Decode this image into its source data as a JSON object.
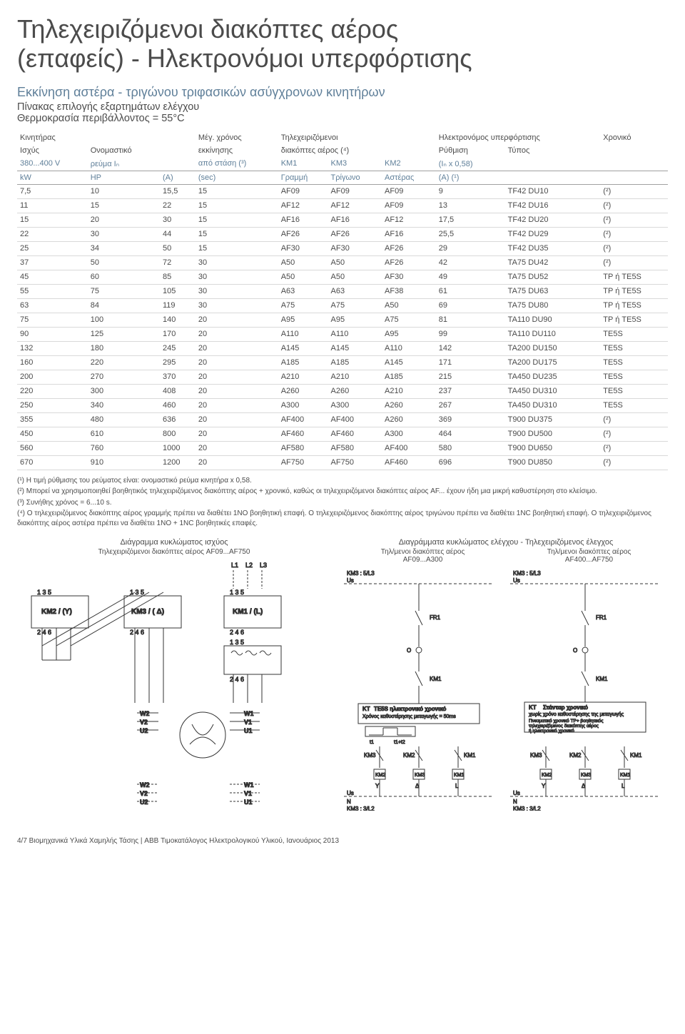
{
  "title_line1": "Τηλεχειριζόμενοι διακόπτες αέρος",
  "title_line2": "(επαφείς) - Ηλεκτρονόμοι υπερφόρτισης",
  "sub1": "Εκκίνηση αστέρα - τριγώνου τριφασικών ασύγχρονων κινητήρων",
  "sub2": "Πίνακας επιλογής εξαρτημάτων ελέγχου",
  "sub3": "Θερμοκρασία περιβάλλοντος = 55°C",
  "headers": {
    "r1": [
      "Κινητήρας",
      "",
      "Μέγ. χρόνος",
      "Τηλεχειριζόμενοι",
      "",
      "",
      "Ηλεκτρονόμος υπερφόρτισης",
      "",
      "Χρονικό"
    ],
    "r2": [
      "Ισχύς",
      "Ονομαστικό",
      "εκκίνησης",
      "διακόπτες αέρος (⁴)",
      "",
      "",
      "Ρύθμιση",
      "Τύπος",
      ""
    ],
    "r3": [
      "380...400 V",
      "ρεύμα Iₙ",
      "από στάση (³)",
      "KM1",
      "KM3",
      "KM2",
      "(Iₙ x 0,58)",
      "",
      ""
    ],
    "r4": [
      "kW",
      "HP",
      "(A)",
      "(sec)",
      "Γραμμή",
      "Τρίγωνο",
      "Αστέρας",
      "(A) (¹)",
      "",
      ""
    ]
  },
  "rows": [
    [
      "7,5",
      "10",
      "15,5",
      "15",
      "AF09",
      "AF09",
      "AF09",
      "9",
      "TF42 DU10",
      "(²)"
    ],
    [
      "11",
      "15",
      "22",
      "15",
      "AF12",
      "AF12",
      "AF09",
      "13",
      "TF42 DU16",
      "(²)"
    ],
    [
      "15",
      "20",
      "30",
      "15",
      "AF16",
      "AF16",
      "AF12",
      "17,5",
      "TF42 DU20",
      "(²)"
    ],
    [
      "22",
      "30",
      "44",
      "15",
      "AF26",
      "AF26",
      "AF16",
      "25,5",
      "TF42 DU29",
      "(²)"
    ],
    [
      "25",
      "34",
      "50",
      "15",
      "AF30",
      "AF30",
      "AF26",
      "29",
      "TF42 DU35",
      "(²)"
    ],
    [
      "37",
      "50",
      "72",
      "30",
      "A50",
      "A50",
      "AF26",
      "42",
      "TA75 DU42",
      "(²)"
    ],
    [
      "45",
      "60",
      "85",
      "30",
      "A50",
      "A50",
      "AF30",
      "49",
      "TA75 DU52",
      "TP ή TE5S"
    ],
    [
      "55",
      "75",
      "105",
      "30",
      "A63",
      "A63",
      "AF38",
      "61",
      "TA75 DU63",
      "TP ή TE5S"
    ],
    [
      "63",
      "84",
      "119",
      "30",
      "A75",
      "A75",
      "A50",
      "69",
      "TA75 DU80",
      "TP ή TE5S"
    ],
    [
      "75",
      "100",
      "140",
      "20",
      "A95",
      "A95",
      "A75",
      "81",
      "TA110 DU90",
      "TP ή TE5S"
    ],
    [
      "90",
      "125",
      "170",
      "20",
      "A110",
      "A110",
      "A95",
      "99",
      "TA110 DU110",
      "TE5S"
    ],
    [
      "132",
      "180",
      "245",
      "20",
      "A145",
      "A145",
      "A110",
      "142",
      "TA200 DU150",
      "TE5S"
    ],
    [
      "160",
      "220",
      "295",
      "20",
      "A185",
      "A185",
      "A145",
      "171",
      "TA200 DU175",
      "TE5S"
    ],
    [
      "200",
      "270",
      "370",
      "20",
      "A210",
      "A210",
      "A185",
      "215",
      "TA450 DU235",
      "TE5S"
    ],
    [
      "220",
      "300",
      "408",
      "20",
      "A260",
      "A260",
      "A210",
      "237",
      "TA450 DU310",
      "TE5S"
    ],
    [
      "250",
      "340",
      "460",
      "20",
      "A300",
      "A300",
      "A260",
      "267",
      "TA450 DU310",
      "TE5S"
    ],
    [
      "355",
      "480",
      "636",
      "20",
      "AF400",
      "AF400",
      "A260",
      "369",
      "T900 DU375",
      "(²)"
    ],
    [
      "450",
      "610",
      "800",
      "20",
      "AF460",
      "AF460",
      "A300",
      "464",
      "T900 DU500",
      "(²)"
    ],
    [
      "560",
      "760",
      "1000",
      "20",
      "AF580",
      "AF580",
      "AF400",
      "580",
      "T900 DU650",
      "(²)"
    ],
    [
      "670",
      "910",
      "1200",
      "20",
      "AF750",
      "AF750",
      "AF460",
      "696",
      "T900 DU850",
      "(²)"
    ]
  ],
  "notes": [
    "(¹) Η τιμή ρύθμισης του ρεύματος είναι: ονομαστικό ρεύμα κινητήρα x 0,58.",
    "(²) Μπορεί να χρησιμοποιηθεί βοηθητικός τηλεχειριζόμενος διακόπτης αέρος + χρονικό, καθώς οι τηλεχειριζόμενοι διακόπτες αέρος AF... έχουν ήδη μια μικρή καθυστέρηση στο κλείσιμο.",
    "(³) Συνήθης χρόνος = 6...10 s.",
    "(⁴) Ο τηλεχειριζόμενος διακόπτης αέρος γραμμής πρέπει να διαθέτει 1NO βοηθητική επαφή. Ο τηλεχειριζόμενος διακόπτης αέρος τριγώνου πρέπει να διαθέτει 1NC βοηθητική επαφή. Ο τηλεχειριζόμενος διακόπτης αέρος αστέρα πρέπει να διαθέτει 1NO + 1NC βοηθητικές επαφές."
  ],
  "diag": {
    "power_title": "Διάγραμμα κυκλώματος ισχύος",
    "power_sub": "Τηλεχειριζόμενοι διακόπτες αέρος AF09...AF750",
    "control_title": "Διαγράμματα κυκλώματος ελέγχου - Τηλεχειριζόμενος έλεγχος",
    "control_sub_l": "Τηλ/μενοι διακόπτες αέρος\nAF09...A300",
    "control_sub_r": "Τηλ/μενοι διακόπτες αέρος\nAF400...AF750",
    "labels": {
      "L1": "L1",
      "L2": "L2",
      "L3": "L3",
      "KM1": "KM1 / (L)",
      "KM2": "KM2 / (Y)",
      "KM3": "KM3 / ( Δ)",
      "W1": "W1",
      "V1": "V1",
      "U1": "U1",
      "W2": "W2",
      "V2": "V2",
      "U2": "U2",
      "FR1": "FR1",
      "KT": "KT",
      "KM1s": "KM1",
      "KM2s": "KM2",
      "KM3s": "KM3",
      "TE5S": "TE5S ηλεκτρονικό χρονικό",
      "TE5S_sub": "Χρόνος καθυστέρησης μεταγωγής = 50ms",
      "std": "Στάνταρ χρονικό",
      "std_sub": "χωρίς χρόνο καθυστέρησης της μεταγωγής",
      "pneum": "Πνευματικό χρονικό TP+ βοηθητικός\nτηλεχειριζόμενος διακόπτης αέρος\nή ηλεκτρονικό χρονικό",
      "Us": "Us",
      "N": "N",
      "KM35L3": "KM3 : 5/L3",
      "KM33L2": "KM3 : 3/L2",
      "YD_L": "Y  Δ  L",
      "t1": "t1",
      "t1t2": "t1+t2",
      "nums": "1  3  5",
      "nums2": "2  4  6"
    }
  },
  "footer": "4/7  Βιομηχανικά Υλικά Χαμηλής Τάσης | ABB Τιμοκατάλογος Ηλεκτρολογικού Υλικού, Ιανουάριος 2013"
}
